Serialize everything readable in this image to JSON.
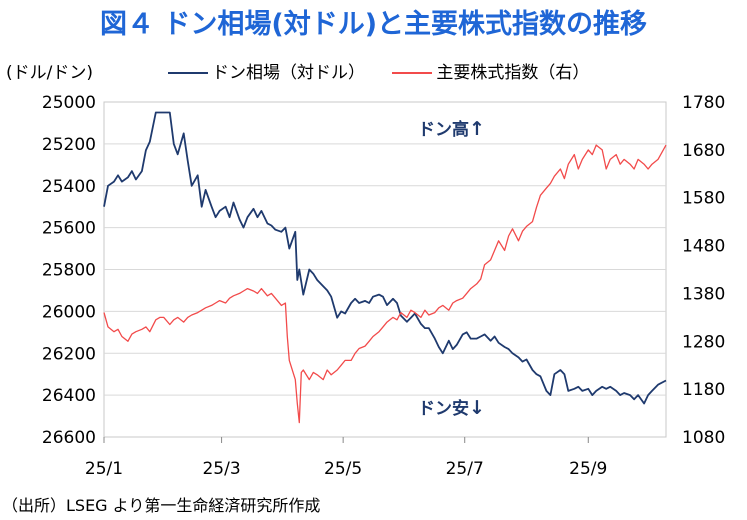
{
  "title": "図４ ドン相場(対ドル)と主要株式指数の推移",
  "unit_label": "(ドル/ドン)",
  "source": "（出所）LSEG より第一生命経済研究所作成",
  "annotations": {
    "up_text": "ドン高",
    "up_arrow": "↑",
    "down_text": "ドン安",
    "down_arrow": "↓"
  },
  "chart_data": {
    "type": "line",
    "title": "図４ ドン相場(対ドル)と主要株式指数の推移",
    "x": {
      "start": "2025-01-01",
      "end": "2025-10-10",
      "ticks": [
        {
          "date": "2025-01-01",
          "label": "25/1"
        },
        {
          "date": "2025-03-01",
          "label": "25/3"
        },
        {
          "date": "2025-05-01",
          "label": "25/5"
        },
        {
          "date": "2025-07-01",
          "label": "25/7"
        },
        {
          "date": "2025-09-01",
          "label": "25/9"
        }
      ]
    },
    "y_left": {
      "min": 25000,
      "max": 26600,
      "inverted": true,
      "ticks": [
        "25000",
        "25200",
        "25400",
        "25600",
        "25800",
        "26000",
        "26200",
        "26400",
        "26600"
      ]
    },
    "y_right": {
      "min": 1080,
      "max": 1780,
      "ticks": [
        "1780",
        "1680",
        "1580",
        "1480",
        "1380",
        "1280",
        "1180",
        "1080"
      ]
    },
    "grid": "horizontal",
    "legend_position": "top",
    "series": [
      {
        "name": "ドン相場（対ドル）",
        "axis": "left",
        "color": "#1f3a6e",
        "points": [
          [
            "2025-01-01",
            25500
          ],
          [
            "2025-01-03",
            25400
          ],
          [
            "2025-01-06",
            25380
          ],
          [
            "2025-01-08",
            25350
          ],
          [
            "2025-01-10",
            25380
          ],
          [
            "2025-01-13",
            25360
          ],
          [
            "2025-01-15",
            25330
          ],
          [
            "2025-01-17",
            25370
          ],
          [
            "2025-01-20",
            25330
          ],
          [
            "2025-01-22",
            25230
          ],
          [
            "2025-01-24",
            25190
          ],
          [
            "2025-01-27",
            25050
          ],
          [
            "2025-01-29",
            25050
          ],
          [
            "2025-01-31",
            25050
          ],
          [
            "2025-02-03",
            25050
          ],
          [
            "2025-02-05",
            25200
          ],
          [
            "2025-02-07",
            25250
          ],
          [
            "2025-02-10",
            25150
          ],
          [
            "2025-02-12",
            25280
          ],
          [
            "2025-02-14",
            25400
          ],
          [
            "2025-02-17",
            25350
          ],
          [
            "2025-02-19",
            25500
          ],
          [
            "2025-02-21",
            25420
          ],
          [
            "2025-02-24",
            25500
          ],
          [
            "2025-02-26",
            25550
          ],
          [
            "2025-02-28",
            25520
          ],
          [
            "2025-03-03",
            25500
          ],
          [
            "2025-03-05",
            25550
          ],
          [
            "2025-03-07",
            25480
          ],
          [
            "2025-03-10",
            25560
          ],
          [
            "2025-03-12",
            25600
          ],
          [
            "2025-03-14",
            25550
          ],
          [
            "2025-03-17",
            25510
          ],
          [
            "2025-03-19",
            25550
          ],
          [
            "2025-03-21",
            25520
          ],
          [
            "2025-03-24",
            25580
          ],
          [
            "2025-03-26",
            25590
          ],
          [
            "2025-03-28",
            25610
          ],
          [
            "2025-03-31",
            25620
          ],
          [
            "2025-04-02",
            25600
          ],
          [
            "2025-04-04",
            25700
          ],
          [
            "2025-04-07",
            25620
          ],
          [
            "2025-04-08",
            25850
          ],
          [
            "2025-04-09",
            25800
          ],
          [
            "2025-04-11",
            25920
          ],
          [
            "2025-04-14",
            25800
          ],
          [
            "2025-04-16",
            25820
          ],
          [
            "2025-04-18",
            25850
          ],
          [
            "2025-04-21",
            25880
          ],
          [
            "2025-04-23",
            25900
          ],
          [
            "2025-04-25",
            25930
          ],
          [
            "2025-04-28",
            26030
          ],
          [
            "2025-04-30",
            26000
          ],
          [
            "2025-05-02",
            26010
          ],
          [
            "2025-05-05",
            25960
          ],
          [
            "2025-05-07",
            25940
          ],
          [
            "2025-05-09",
            25960
          ],
          [
            "2025-05-12",
            25950
          ],
          [
            "2025-05-14",
            25960
          ],
          [
            "2025-05-16",
            25930
          ],
          [
            "2025-05-19",
            25920
          ],
          [
            "2025-05-21",
            25930
          ],
          [
            "2025-05-23",
            25970
          ],
          [
            "2025-05-26",
            25940
          ],
          [
            "2025-05-28",
            25960
          ],
          [
            "2025-05-30",
            26020
          ],
          [
            "2025-06-02",
            26050
          ],
          [
            "2025-06-04",
            26030
          ],
          [
            "2025-06-06",
            26010
          ],
          [
            "2025-06-09",
            26060
          ],
          [
            "2025-06-11",
            26080
          ],
          [
            "2025-06-13",
            26080
          ],
          [
            "2025-06-16",
            26130
          ],
          [
            "2025-06-18",
            26170
          ],
          [
            "2025-06-20",
            26200
          ],
          [
            "2025-06-23",
            26140
          ],
          [
            "2025-06-25",
            26180
          ],
          [
            "2025-06-27",
            26160
          ],
          [
            "2025-06-30",
            26110
          ],
          [
            "2025-07-02",
            26100
          ],
          [
            "2025-07-04",
            26130
          ],
          [
            "2025-07-07",
            26130
          ],
          [
            "2025-07-09",
            26120
          ],
          [
            "2025-07-11",
            26110
          ],
          [
            "2025-07-14",
            26140
          ],
          [
            "2025-07-16",
            26120
          ],
          [
            "2025-07-18",
            26150
          ],
          [
            "2025-07-21",
            26170
          ],
          [
            "2025-07-23",
            26180
          ],
          [
            "2025-07-25",
            26200
          ],
          [
            "2025-07-28",
            26220
          ],
          [
            "2025-07-30",
            26240
          ],
          [
            "2025-08-01",
            26230
          ],
          [
            "2025-08-04",
            26280
          ],
          [
            "2025-08-06",
            26300
          ],
          [
            "2025-08-08",
            26310
          ],
          [
            "2025-08-11",
            26380
          ],
          [
            "2025-08-13",
            26400
          ],
          [
            "2025-08-15",
            26300
          ],
          [
            "2025-08-18",
            26280
          ],
          [
            "2025-08-20",
            26300
          ],
          [
            "2025-08-22",
            26380
          ],
          [
            "2025-08-25",
            26370
          ],
          [
            "2025-08-27",
            26360
          ],
          [
            "2025-08-29",
            26380
          ],
          [
            "2025-09-01",
            26370
          ],
          [
            "2025-09-03",
            26400
          ],
          [
            "2025-09-05",
            26380
          ],
          [
            "2025-09-08",
            26360
          ],
          [
            "2025-09-10",
            26370
          ],
          [
            "2025-09-12",
            26360
          ],
          [
            "2025-09-15",
            26380
          ],
          [
            "2025-09-17",
            26400
          ],
          [
            "2025-09-19",
            26390
          ],
          [
            "2025-09-22",
            26400
          ],
          [
            "2025-09-24",
            26420
          ],
          [
            "2025-09-26",
            26400
          ],
          [
            "2025-09-29",
            26440
          ],
          [
            "2025-10-01",
            26400
          ],
          [
            "2025-10-03",
            26380
          ],
          [
            "2025-10-06",
            26350
          ],
          [
            "2025-10-10",
            26330
          ]
        ]
      },
      {
        "name": "主要株式指数（右）",
        "axis": "right",
        "color": "#f24b4b",
        "points": [
          [
            "2025-01-01",
            1340
          ],
          [
            "2025-01-03",
            1310
          ],
          [
            "2025-01-06",
            1300
          ],
          [
            "2025-01-08",
            1305
          ],
          [
            "2025-01-10",
            1290
          ],
          [
            "2025-01-13",
            1280
          ],
          [
            "2025-01-15",
            1295
          ],
          [
            "2025-01-17",
            1300
          ],
          [
            "2025-01-20",
            1305
          ],
          [
            "2025-01-22",
            1310
          ],
          [
            "2025-01-24",
            1300
          ],
          [
            "2025-01-27",
            1325
          ],
          [
            "2025-01-29",
            1330
          ],
          [
            "2025-01-31",
            1330
          ],
          [
            "2025-02-03",
            1315
          ],
          [
            "2025-02-05",
            1325
          ],
          [
            "2025-02-07",
            1330
          ],
          [
            "2025-02-10",
            1320
          ],
          [
            "2025-02-12",
            1330
          ],
          [
            "2025-02-14",
            1335
          ],
          [
            "2025-02-17",
            1340
          ],
          [
            "2025-02-19",
            1345
          ],
          [
            "2025-02-21",
            1350
          ],
          [
            "2025-02-24",
            1355
          ],
          [
            "2025-02-26",
            1360
          ],
          [
            "2025-02-28",
            1365
          ],
          [
            "2025-03-03",
            1360
          ],
          [
            "2025-03-05",
            1370
          ],
          [
            "2025-03-07",
            1375
          ],
          [
            "2025-03-10",
            1380
          ],
          [
            "2025-03-12",
            1385
          ],
          [
            "2025-03-14",
            1390
          ],
          [
            "2025-03-17",
            1385
          ],
          [
            "2025-03-19",
            1380
          ],
          [
            "2025-03-21",
            1390
          ],
          [
            "2025-03-24",
            1375
          ],
          [
            "2025-03-26",
            1380
          ],
          [
            "2025-03-28",
            1370
          ],
          [
            "2025-03-31",
            1355
          ],
          [
            "2025-04-02",
            1360
          ],
          [
            "2025-04-03",
            1290
          ],
          [
            "2025-04-04",
            1240
          ],
          [
            "2025-04-07",
            1200
          ],
          [
            "2025-04-08",
            1150
          ],
          [
            "2025-04-09",
            1110
          ],
          [
            "2025-04-10",
            1215
          ],
          [
            "2025-04-11",
            1220
          ],
          [
            "2025-04-14",
            1200
          ],
          [
            "2025-04-16",
            1215
          ],
          [
            "2025-04-18",
            1210
          ],
          [
            "2025-04-21",
            1200
          ],
          [
            "2025-04-23",
            1220
          ],
          [
            "2025-04-25",
            1210
          ],
          [
            "2025-04-28",
            1220
          ],
          [
            "2025-04-30",
            1230
          ],
          [
            "2025-05-02",
            1240
          ],
          [
            "2025-05-05",
            1240
          ],
          [
            "2025-05-07",
            1255
          ],
          [
            "2025-05-09",
            1265
          ],
          [
            "2025-05-12",
            1270
          ],
          [
            "2025-05-14",
            1280
          ],
          [
            "2025-05-16",
            1290
          ],
          [
            "2025-05-19",
            1300
          ],
          [
            "2025-05-21",
            1310
          ],
          [
            "2025-05-23",
            1320
          ],
          [
            "2025-05-26",
            1330
          ],
          [
            "2025-05-28",
            1325
          ],
          [
            "2025-05-30",
            1340
          ],
          [
            "2025-06-02",
            1330
          ],
          [
            "2025-06-04",
            1345
          ],
          [
            "2025-06-06",
            1340
          ],
          [
            "2025-06-09",
            1330
          ],
          [
            "2025-06-11",
            1345
          ],
          [
            "2025-06-13",
            1335
          ],
          [
            "2025-06-16",
            1340
          ],
          [
            "2025-06-18",
            1350
          ],
          [
            "2025-06-20",
            1355
          ],
          [
            "2025-06-23",
            1345
          ],
          [
            "2025-06-25",
            1360
          ],
          [
            "2025-06-27",
            1365
          ],
          [
            "2025-06-30",
            1370
          ],
          [
            "2025-07-02",
            1380
          ],
          [
            "2025-07-04",
            1390
          ],
          [
            "2025-07-07",
            1400
          ],
          [
            "2025-07-09",
            1410
          ],
          [
            "2025-07-11",
            1440
          ],
          [
            "2025-07-14",
            1450
          ],
          [
            "2025-07-16",
            1470
          ],
          [
            "2025-07-18",
            1490
          ],
          [
            "2025-07-21",
            1470
          ],
          [
            "2025-07-23",
            1500
          ],
          [
            "2025-07-25",
            1515
          ],
          [
            "2025-07-28",
            1490
          ],
          [
            "2025-07-30",
            1510
          ],
          [
            "2025-08-01",
            1520
          ],
          [
            "2025-08-04",
            1530
          ],
          [
            "2025-08-06",
            1560
          ],
          [
            "2025-08-08",
            1585
          ],
          [
            "2025-08-11",
            1600
          ],
          [
            "2025-08-13",
            1610
          ],
          [
            "2025-08-15",
            1625
          ],
          [
            "2025-08-18",
            1640
          ],
          [
            "2025-08-20",
            1620
          ],
          [
            "2025-08-22",
            1650
          ],
          [
            "2025-08-25",
            1670
          ],
          [
            "2025-08-27",
            1640
          ],
          [
            "2025-08-29",
            1660
          ],
          [
            "2025-09-01",
            1680
          ],
          [
            "2025-09-03",
            1670
          ],
          [
            "2025-09-05",
            1690
          ],
          [
            "2025-09-08",
            1680
          ],
          [
            "2025-09-10",
            1640
          ],
          [
            "2025-09-12",
            1660
          ],
          [
            "2025-09-15",
            1670
          ],
          [
            "2025-09-17",
            1650
          ],
          [
            "2025-09-19",
            1660
          ],
          [
            "2025-09-22",
            1650
          ],
          [
            "2025-09-24",
            1640
          ],
          [
            "2025-09-26",
            1660
          ],
          [
            "2025-09-29",
            1650
          ],
          [
            "2025-10-01",
            1640
          ],
          [
            "2025-10-03",
            1650
          ],
          [
            "2025-10-06",
            1660
          ],
          [
            "2025-10-10",
            1690
          ]
        ]
      }
    ]
  }
}
